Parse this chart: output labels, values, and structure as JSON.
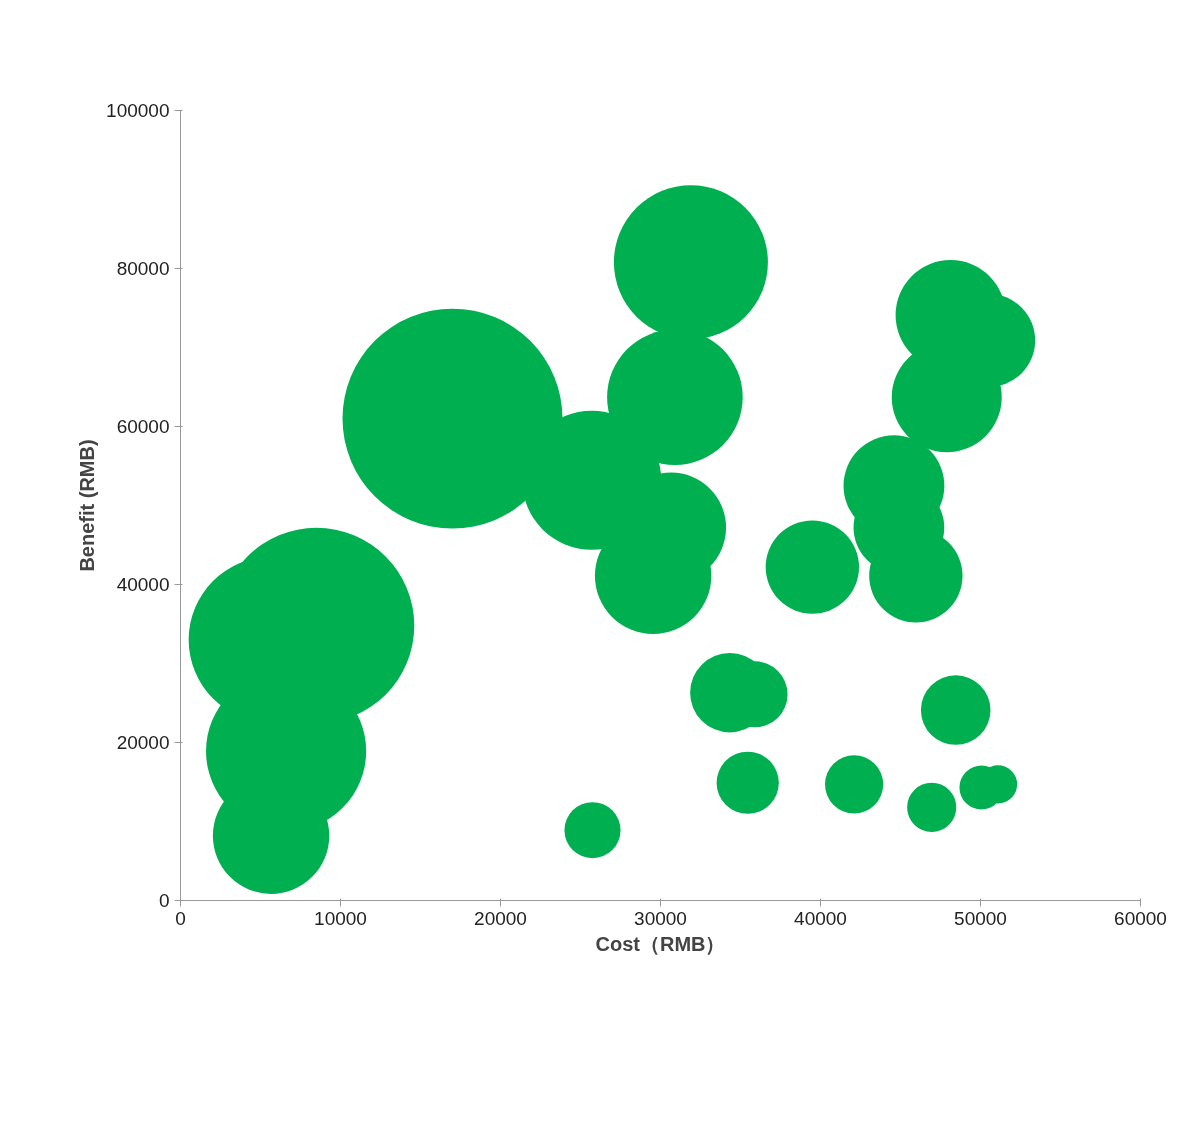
{
  "chart_data": {
    "type": "bubble",
    "xlabel": "Cost（RMB）",
    "ylabel": "Benefit (RMB)",
    "xlim": [
      0,
      60000
    ],
    "ylim": [
      0,
      100000
    ],
    "xticks": [
      0,
      10000,
      20000,
      30000,
      40000,
      50000,
      60000
    ],
    "yticks": [
      0,
      20000,
      40000,
      60000,
      80000,
      100000
    ],
    "grid": false,
    "series": [
      {
        "color": "#00b050",
        "x": [
          17000,
          5700,
          8500,
          6600,
          5660,
          25750,
          25700,
          31900,
          30900,
          30660,
          29540,
          39490,
          34330,
          35880,
          35450,
          42100,
          44590,
          44900,
          45960,
          48130,
          50500,
          47890,
          48450,
          46950,
          50060,
          51100
        ],
        "values": [
          61000,
          33000,
          34800,
          18900,
          8200,
          8900,
          53200,
          80800,
          63700,
          47200,
          41100,
          42200,
          26300,
          26100,
          14900,
          14700,
          52500,
          47200,
          41100,
          74100,
          70900,
          63700,
          24100,
          11800,
          14300,
          14700
        ],
        "sizes": [
          1,
          0.57,
          0.79,
          0.53,
          0.28,
          0.065,
          0.4,
          0.49,
          0.38,
          0.25,
          0.28,
          0.18,
          0.13,
          0.09,
          0.08,
          0.07,
          0.21,
          0.17,
          0.18,
          0.25,
          0.18,
          0.25,
          0.1,
          0.05,
          0.04,
          0.03
        ]
      }
    ]
  }
}
